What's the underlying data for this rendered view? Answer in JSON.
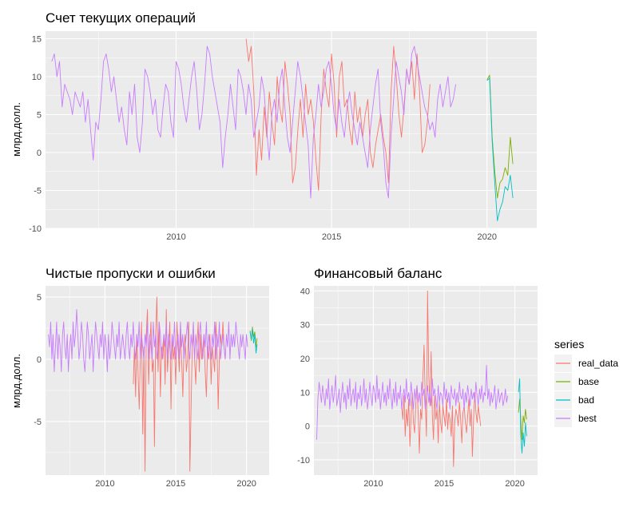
{
  "colors": {
    "panel_bg": "#EBEBEB",
    "grid_major": "#FFFFFF",
    "legend_key_bg": "#F2F2F2",
    "real_data": "#F8766D",
    "base": "#7CAE00",
    "bad": "#00BFC4",
    "best": "#C77CFF"
  },
  "legend": {
    "title": "series",
    "placement": "right",
    "items": [
      {
        "key": "real_data",
        "label": "real_data"
      },
      {
        "key": "base",
        "label": "base"
      },
      {
        "key": "bad",
        "label": "bad"
      },
      {
        "key": "best",
        "label": "best"
      }
    ]
  },
  "chart_data": [
    {
      "type": "line",
      "title": "Счет текущих операций",
      "xlabel": "",
      "ylabel": "млрд.долл.",
      "xlim": [
        2005.8,
        2021.6
      ],
      "ylim": [
        -10,
        16
      ],
      "xticks": [
        2010,
        2015,
        2020
      ],
      "xtick_labels": [
        "2010",
        "2015",
        "2020"
      ],
      "yticks": [
        -10,
        -5,
        0,
        5,
        10,
        15
      ],
      "ytick_labels": [
        "-10",
        "-5",
        "0",
        "5",
        "10",
        "15"
      ],
      "grid": true,
      "series": [
        {
          "name": "real_data",
          "start": 2012.25,
          "step": 0.0833,
          "values": [
            15,
            12,
            14,
            8,
            -3,
            3,
            -1,
            6,
            2,
            8,
            4,
            1,
            10,
            6,
            4,
            12,
            9,
            5,
            -4,
            -2,
            3,
            7,
            2,
            9,
            5,
            7,
            4,
            -1,
            -5,
            5,
            11,
            8,
            6,
            13,
            9,
            2,
            10,
            12,
            6,
            7,
            3,
            1,
            8,
            4,
            6,
            2,
            5,
            7,
            0,
            -2,
            1,
            3,
            5,
            2,
            0,
            -4,
            8,
            14,
            10,
            5,
            2,
            6,
            11,
            9,
            12,
            7,
            13,
            8,
            0,
            1,
            4,
            9
          ]
        },
        {
          "name": "base",
          "start": 2020.0,
          "step": 0.0833,
          "values": [
            9.6,
            10.2,
            2.0,
            -2.5,
            -6.0,
            -4.0,
            -3.5,
            -2.0,
            -3.0,
            2.0,
            -1.5
          ]
        },
        {
          "name": "bad",
          "start": 2020.0,
          "step": 0.0833,
          "values": [
            9.5,
            9.8,
            1.5,
            -4.0,
            -9.0,
            -7.5,
            -6.5,
            -4.5,
            -5.0,
            -3.0,
            -6.0
          ]
        },
        {
          "name": "best",
          "start": 2006.0,
          "step": 0.0833,
          "values": [
            12,
            13,
            10,
            12,
            6,
            9,
            8,
            7,
            5,
            8,
            7,
            6,
            8,
            4,
            7,
            3,
            -1,
            4,
            3,
            7,
            12,
            13,
            11,
            8,
            10,
            7,
            4,
            6,
            3,
            1,
            8,
            5,
            9,
            2,
            0,
            4,
            11,
            10,
            8,
            5,
            7,
            3,
            2,
            6,
            9,
            8,
            4,
            2,
            12,
            11,
            9,
            6,
            4,
            7,
            10,
            12,
            8,
            3,
            5,
            9,
            14,
            13,
            10,
            8,
            6,
            4,
            -2,
            2,
            5,
            9,
            6,
            3,
            11,
            10,
            8,
            5,
            9,
            7,
            2,
            4,
            6,
            10,
            8,
            3,
            -1,
            5,
            7,
            4,
            9,
            11,
            6,
            2,
            0,
            4,
            8,
            12,
            10,
            7,
            4,
            1,
            -6,
            2,
            5,
            9,
            6,
            8,
            11,
            12,
            9,
            5,
            3,
            7,
            4,
            2,
            6,
            8,
            5,
            3,
            1,
            4,
            2,
            0,
            -2,
            3,
            6,
            9,
            11,
            4,
            1,
            -4,
            -6,
            2,
            7,
            12,
            10,
            8,
            5,
            11,
            9,
            13,
            14,
            12,
            10,
            8,
            6,
            5,
            3,
            4,
            2,
            7,
            9,
            6,
            8,
            10,
            6,
            7,
            9
          ]
        }
      ]
    },
    {
      "type": "line",
      "title": "Чистые пропуски и ошибки",
      "xlabel": "",
      "ylabel": "млрд.долл.",
      "xlim": [
        2005.8,
        2021.6
      ],
      "ylim": [
        -9.3,
        5.9
      ],
      "xticks": [
        2010,
        2015,
        2020
      ],
      "xtick_labels": [
        "2010",
        "2015",
        "2020"
      ],
      "yticks": [
        -5,
        0,
        5
      ],
      "ytick_labels": [
        "-5",
        "0",
        "5"
      ],
      "grid": true,
      "series": [
        {
          "name": "real_data",
          "start": 2012.0,
          "step": 0.0833,
          "values": [
            -2,
            1,
            -3,
            2,
            -1,
            -4,
            0,
            3,
            -6,
            1,
            -9,
            2,
            4,
            -2,
            1,
            3,
            -1,
            0,
            -7,
            2,
            5,
            -1,
            3,
            -3,
            1,
            0,
            2,
            -2,
            4,
            -1,
            1,
            3,
            -4,
            2,
            0,
            1,
            -2,
            3,
            1,
            -1,
            2,
            0,
            -3,
            1,
            2,
            -1,
            0,
            3,
            -9,
            -4,
            1,
            2,
            0,
            -2,
            1,
            3,
            -1,
            2,
            0,
            1,
            2,
            -1,
            -3,
            1,
            0,
            2,
            -2,
            1,
            0,
            -1,
            3,
            1,
            -4,
            0,
            2,
            1,
            3,
            1,
            0
          ]
        },
        {
          "name": "base",
          "start": 2020.25,
          "step": 0.0833,
          "values": [
            2.3,
            1.5,
            2.6,
            1.8,
            2.2,
            1.0,
            1.7
          ]
        },
        {
          "name": "bad",
          "start": 2020.25,
          "step": 0.0833,
          "values": [
            2.2,
            1.6,
            2.4,
            1.3,
            2.0,
            0.5,
            1.2
          ]
        },
        {
          "name": "best",
          "start": 2006.0,
          "step": 0.0833,
          "values": [
            2,
            1,
            3,
            0,
            2,
            -1,
            1,
            3,
            0,
            2,
            1,
            -1,
            2,
            3,
            1,
            0,
            2,
            -1,
            1,
            2,
            0,
            3,
            1,
            2,
            4,
            2,
            0,
            1,
            3,
            2,
            0,
            -1,
            1,
            3,
            2,
            0,
            1,
            2,
            -1,
            1,
            3,
            2,
            1,
            0,
            2,
            1,
            3,
            0,
            2,
            1,
            -1,
            2,
            0,
            1,
            3,
            2,
            1,
            0,
            2,
            1,
            3,
            0,
            1,
            2,
            1,
            0,
            2,
            3,
            1,
            0,
            2,
            1,
            3,
            1,
            0,
            2,
            1,
            3,
            0,
            2,
            1,
            0,
            2,
            1,
            3,
            0,
            2,
            1,
            0,
            3,
            1,
            2,
            0,
            1,
            3,
            2,
            0,
            1,
            2,
            1,
            3,
            0,
            2,
            1,
            0,
            2,
            1,
            3,
            0,
            1,
            2,
            0,
            3,
            1,
            2,
            0,
            1,
            2,
            3,
            1,
            0,
            2,
            1,
            3,
            0,
            2,
            1,
            0,
            2,
            3,
            1,
            0,
            2,
            1,
            3,
            0,
            2,
            1,
            0,
            2,
            1,
            3,
            0,
            2,
            1,
            3,
            0,
            1,
            2,
            1,
            0,
            2,
            1,
            3,
            0,
            2,
            1,
            2,
            1,
            3,
            2,
            1,
            0,
            2,
            1,
            2,
            1,
            0,
            2,
            1
          ]
        }
      ]
    },
    {
      "type": "line",
      "title": "Финансовый баланс",
      "xlabel": "",
      "ylabel": "",
      "xlim": [
        2005.8,
        2021.6
      ],
      "ylim": [
        -14.5,
        41.5
      ],
      "xticks": [
        2010,
        2015,
        2020
      ],
      "xtick_labels": [
        "2010",
        "2015",
        "2020"
      ],
      "yticks": [
        -10,
        0,
        10,
        20,
        30,
        40
      ],
      "ytick_labels": [
        "-10",
        "0",
        "10",
        "20",
        "30",
        "40"
      ],
      "grid": true,
      "series": [
        {
          "name": "real_data",
          "start": 2012.0,
          "step": 0.0833,
          "values": [
            6,
            2,
            9,
            -3,
            5,
            0,
            8,
            -6,
            3,
            10,
            1,
            -2,
            7,
            12,
            4,
            -8,
            5,
            2,
            14,
            24,
            8,
            -3,
            40,
            15,
            6,
            22,
            3,
            -4,
            9,
            2,
            5,
            -5,
            7,
            1,
            -2,
            6,
            3,
            0,
            8,
            -1,
            4,
            2,
            -3,
            6,
            -12,
            1,
            5,
            3,
            0,
            7,
            2,
            -5,
            4,
            6,
            1,
            -2,
            3,
            8,
            0,
            5,
            -9,
            2,
            10,
            4,
            1,
            6,
            3,
            0
          ]
        },
        {
          "name": "base",
          "start": 2020.25,
          "step": 0.0833,
          "values": [
            4,
            8,
            2,
            -4,
            3,
            1,
            5,
            2
          ]
        },
        {
          "name": "bad",
          "start": 2020.25,
          "step": 0.0833,
          "values": [
            10,
            14,
            -3,
            -8,
            -2,
            -6,
            1,
            -3
          ]
        },
        {
          "name": "best",
          "start": 2006.0,
          "step": 0.0833,
          "values": [
            -4,
            8,
            13,
            10,
            7,
            12,
            9,
            6,
            11,
            8,
            14,
            5,
            9,
            12,
            7,
            10,
            15,
            6,
            8,
            11,
            4,
            9,
            13,
            7,
            10,
            5,
            12,
            8,
            14,
            6,
            9,
            11,
            7,
            13,
            5,
            10,
            8,
            12,
            6,
            9,
            14,
            7,
            11,
            5,
            8,
            13,
            9,
            6,
            12,
            10,
            7,
            15,
            8,
            11,
            5,
            9,
            13,
            7,
            10,
            6,
            12,
            8,
            14,
            9,
            5,
            11,
            7,
            13,
            6,
            10,
            8,
            12,
            5,
            9,
            11,
            7,
            14,
            8,
            10,
            6,
            13,
            9,
            5,
            11,
            8,
            12,
            7,
            10,
            6,
            13,
            9,
            11,
            5,
            8,
            12,
            7,
            10,
            6,
            14,
            9,
            11,
            8,
            5,
            12,
            7,
            10,
            9,
            6,
            13,
            8,
            11,
            7,
            10,
            5,
            12,
            9,
            8,
            11,
            6,
            10,
            7,
            13,
            9,
            8,
            11,
            5,
            10,
            7,
            12,
            9,
            6,
            11,
            8,
            10,
            7,
            13,
            9,
            6,
            11,
            8,
            12,
            7,
            10,
            9,
            18,
            8,
            11,
            6,
            10,
            7,
            9,
            12,
            5,
            8,
            11,
            7,
            9,
            10,
            6,
            8,
            11,
            7,
            9
          ]
        }
      ]
    }
  ]
}
